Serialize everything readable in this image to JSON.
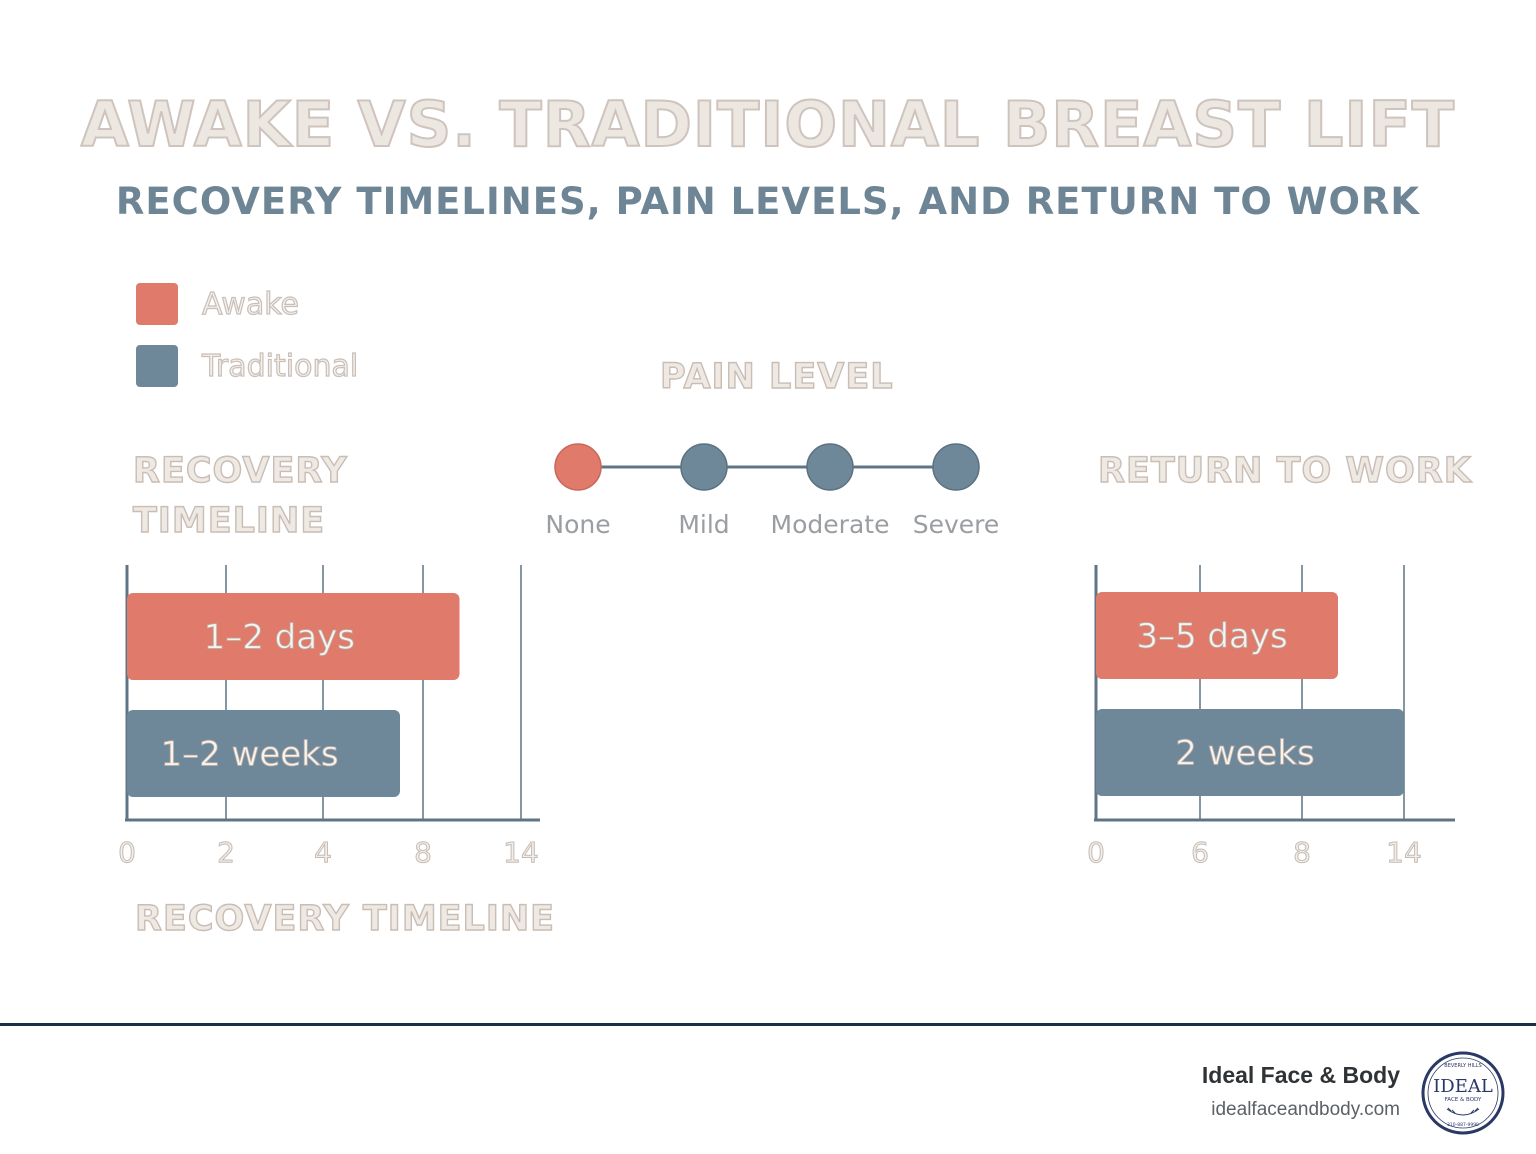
{
  "title": "AWAKE VS. TRADITIONAL BREAST LIFT",
  "subtitle": "RECOVERY TIMELINES, PAIN LEVELS, AND RETURN TO WORK",
  "legend": [
    {
      "label": "Awake",
      "color": "#e07a6b"
    },
    {
      "label": "Traditional",
      "color": "#6f8899"
    }
  ],
  "chart_data": [
    {
      "type": "bar",
      "title": "RECOVERY TIMELINE",
      "xlabel": "RECOVERY TIMELINE",
      "ticks": [
        "0",
        "2",
        "4",
        "8",
        "14"
      ],
      "bars": [
        {
          "series": "Awake",
          "label": "1–2 days",
          "value": 9.5
        },
        {
          "series": "Traditional",
          "label": "1–2 weeks",
          "value": 7.8
        }
      ]
    },
    {
      "type": "scale",
      "title": "PAIN LEVEL",
      "levels": [
        "None",
        "Mild",
        "Moderate",
        "Severe"
      ],
      "awake_level": "None"
    },
    {
      "type": "bar",
      "title": "RETURN TO WORK",
      "ticks": [
        "0",
        "6",
        "8",
        "14"
      ],
      "bars": [
        {
          "series": "Awake",
          "label": "3–5 days",
          "value": 11
        },
        {
          "series": "Traditional",
          "label": "2 weeks",
          "value": 14
        }
      ]
    }
  ],
  "footer": {
    "brand": "Ideal Face & Body",
    "url": "idealfaceandbody.com",
    "logo": {
      "top": "BEVERLY HILLS",
      "main": "IDEAL",
      "sub": "FACE & BODY",
      "bottom": "310-887-9990"
    }
  },
  "colors": {
    "awake": "#e07a6b",
    "traditional": "#6f8899",
    "axis": "#5f7585"
  }
}
